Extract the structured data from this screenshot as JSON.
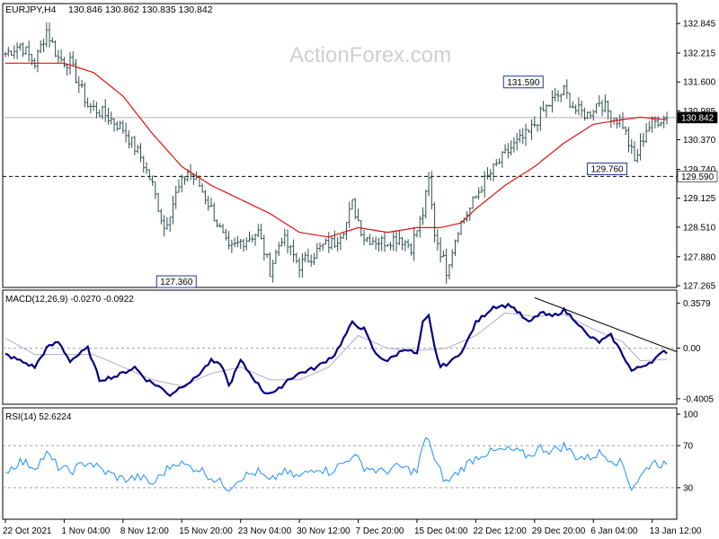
{
  "header": {
    "symbol": "EURJPY,H4",
    "ohlc": "130.846 130.862 130.835 130.842"
  },
  "watermark": "ActionForex.com",
  "chart_data": [
    {
      "type": "line",
      "name": "price",
      "title": "EURJPY,H4  130.846 130.862 130.835 130.842",
      "ylim": [
        127.265,
        133.0
      ],
      "ticks": [
        "132.845",
        "132.215",
        "131.600",
        "130.985",
        "130.370",
        "129.740",
        "129.125",
        "128.510",
        "127.880",
        "127.265"
      ],
      "tick_values": [
        132.845,
        132.215,
        131.6,
        130.985,
        130.37,
        129.74,
        129.125,
        128.51,
        127.88,
        127.265
      ],
      "current_price": {
        "label": "130.842",
        "value": 130.842
      },
      "support_level": {
        "label": "129.590",
        "value": 129.59
      },
      "annotations": [
        {
          "text": "127.360",
          "value": 127.36,
          "index": 60
        },
        {
          "text": "131.590",
          "value": 131.59,
          "index": 178
        },
        {
          "text": "129.760",
          "value": 129.76,
          "index": 212
        }
      ],
      "close_keypoints": [
        [
          0,
          132.2
        ],
        [
          5,
          132.4
        ],
        [
          10,
          132.0
        ],
        [
          14,
          132.7
        ],
        [
          18,
          132.1
        ],
        [
          22,
          132.0
        ],
        [
          28,
          131.1
        ],
        [
          34,
          130.9
        ],
        [
          40,
          130.6
        ],
        [
          46,
          130.0
        ],
        [
          50,
          129.4
        ],
        [
          54,
          128.5
        ],
        [
          58,
          129.2
        ],
        [
          62,
          129.7
        ],
        [
          66,
          129.4
        ],
        [
          70,
          128.9
        ],
        [
          76,
          128.0
        ],
        [
          80,
          128.2
        ],
        [
          86,
          128.4
        ],
        [
          90,
          127.6
        ],
        [
          94,
          128.3
        ],
        [
          100,
          127.7
        ],
        [
          104,
          127.9
        ],
        [
          108,
          128.1
        ],
        [
          112,
          128.2
        ],
        [
          116,
          128.6
        ],
        [
          118,
          129.0
        ],
        [
          122,
          128.3
        ],
        [
          128,
          128.2
        ],
        [
          134,
          128.3
        ],
        [
          138,
          128.1
        ],
        [
          142,
          128.8
        ],
        [
          144,
          129.5
        ],
        [
          146,
          128.4
        ],
        [
          150,
          127.6
        ],
        [
          154,
          128.5
        ],
        [
          158,
          128.9
        ],
        [
          162,
          129.4
        ],
        [
          168,
          129.9
        ],
        [
          172,
          130.2
        ],
        [
          178,
          130.5
        ],
        [
          182,
          130.9
        ],
        [
          186,
          131.2
        ],
        [
          190,
          131.4
        ],
        [
          194,
          131.0
        ],
        [
          198,
          130.9
        ],
        [
          202,
          131.2
        ],
        [
          206,
          130.9
        ],
        [
          210,
          130.7
        ],
        [
          212,
          130.3
        ],
        [
          214,
          129.9
        ],
        [
          218,
          130.6
        ],
        [
          222,
          130.8
        ],
        [
          224,
          130.84
        ]
      ],
      "ma_keypoints": [
        [
          0,
          132.0
        ],
        [
          20,
          132.0
        ],
        [
          30,
          131.8
        ],
        [
          40,
          131.3
        ],
        [
          50,
          130.5
        ],
        [
          60,
          129.8
        ],
        [
          70,
          129.4
        ],
        [
          80,
          129.1
        ],
        [
          90,
          128.8
        ],
        [
          100,
          128.4
        ],
        [
          110,
          128.3
        ],
        [
          120,
          128.5
        ],
        [
          130,
          128.4
        ],
        [
          140,
          128.5
        ],
        [
          148,
          128.5
        ],
        [
          155,
          128.6
        ],
        [
          160,
          128.9
        ],
        [
          170,
          129.4
        ],
        [
          180,
          129.8
        ],
        [
          190,
          130.3
        ],
        [
          200,
          130.7
        ],
        [
          210,
          130.8
        ],
        [
          216,
          130.85
        ],
        [
          224,
          130.8
        ]
      ]
    },
    {
      "type": "line",
      "name": "macd",
      "title": "MACD(12,26,9) -0.0270 -0.0922",
      "ylim": [
        -0.43,
        0.41
      ],
      "ticks": [
        "0.3579",
        "0.00",
        "-0.4005"
      ],
      "tick_values": [
        0.3579,
        0.0,
        -0.4005
      ],
      "trendline": [
        [
          180,
          0.4
        ],
        [
          224,
          0.0
        ]
      ],
      "macd_keypoints": [
        [
          0,
          -0.05
        ],
        [
          5,
          -0.1
        ],
        [
          10,
          -0.15
        ],
        [
          14,
          0.0
        ],
        [
          18,
          0.05
        ],
        [
          22,
          -0.1
        ],
        [
          28,
          0.0
        ],
        [
          32,
          -0.25
        ],
        [
          38,
          -0.22
        ],
        [
          44,
          -0.15
        ],
        [
          48,
          -0.25
        ],
        [
          52,
          -0.3
        ],
        [
          56,
          -0.37
        ],
        [
          60,
          -0.3
        ],
        [
          64,
          -0.25
        ],
        [
          70,
          -0.1
        ],
        [
          74,
          -0.15
        ],
        [
          76,
          -0.3
        ],
        [
          80,
          -0.1
        ],
        [
          88,
          -0.35
        ],
        [
          92,
          -0.35
        ],
        [
          96,
          -0.25
        ],
        [
          100,
          -0.2
        ],
        [
          106,
          -0.15
        ],
        [
          112,
          -0.05
        ],
        [
          118,
          0.2
        ],
        [
          122,
          0.15
        ],
        [
          126,
          -0.05
        ],
        [
          130,
          -0.1
        ],
        [
          136,
          0.0
        ],
        [
          140,
          -0.05
        ],
        [
          142,
          0.2
        ],
        [
          144,
          0.25
        ],
        [
          146,
          0.0
        ],
        [
          148,
          -0.15
        ],
        [
          152,
          -0.1
        ],
        [
          156,
          0.0
        ],
        [
          160,
          0.2
        ],
        [
          166,
          0.33
        ],
        [
          172,
          0.34
        ],
        [
          178,
          0.2
        ],
        [
          182,
          0.28
        ],
        [
          186,
          0.25
        ],
        [
          190,
          0.3
        ],
        [
          194,
          0.22
        ],
        [
          198,
          0.1
        ],
        [
          202,
          0.05
        ],
        [
          206,
          0.1
        ],
        [
          210,
          -0.05
        ],
        [
          213,
          -0.18
        ],
        [
          216,
          -0.15
        ],
        [
          220,
          -0.1
        ],
        [
          224,
          -0.03
        ]
      ],
      "signal_keypoints": [
        [
          0,
          0.08
        ],
        [
          10,
          -0.05
        ],
        [
          20,
          -0.05
        ],
        [
          30,
          -0.05
        ],
        [
          40,
          -0.15
        ],
        [
          50,
          -0.25
        ],
        [
          60,
          -0.3
        ],
        [
          70,
          -0.2
        ],
        [
          80,
          -0.15
        ],
        [
          90,
          -0.25
        ],
        [
          100,
          -0.25
        ],
        [
          110,
          -0.15
        ],
        [
          120,
          0.1
        ],
        [
          130,
          0.0
        ],
        [
          140,
          -0.02
        ],
        [
          150,
          0.0
        ],
        [
          160,
          0.1
        ],
        [
          170,
          0.28
        ],
        [
          180,
          0.25
        ],
        [
          190,
          0.27
        ],
        [
          200,
          0.15
        ],
        [
          210,
          0.05
        ],
        [
          216,
          -0.1
        ],
        [
          224,
          -0.09
        ]
      ]
    },
    {
      "type": "line",
      "name": "rsi",
      "title": "RSI(14) 52.6224",
      "ylim": [
        0,
        100
      ],
      "ticks": [
        "100",
        "70",
        "30",
        "0"
      ],
      "tick_values": [
        100,
        70,
        30,
        0
      ],
      "levels": [
        70,
        30
      ],
      "rsi_keypoints": [
        [
          0,
          45
        ],
        [
          5,
          55
        ],
        [
          10,
          50
        ],
        [
          14,
          62
        ],
        [
          18,
          50
        ],
        [
          22,
          45
        ],
        [
          28,
          55
        ],
        [
          34,
          45
        ],
        [
          40,
          38
        ],
        [
          46,
          40
        ],
        [
          50,
          33
        ],
        [
          54,
          45
        ],
        [
          58,
          55
        ],
        [
          62,
          50
        ],
        [
          66,
          48
        ],
        [
          70,
          40
        ],
        [
          76,
          30
        ],
        [
          80,
          40
        ],
        [
          86,
          45
        ],
        [
          90,
          35
        ],
        [
          94,
          45
        ],
        [
          100,
          40
        ],
        [
          106,
          50
        ],
        [
          110,
          45
        ],
        [
          116,
          55
        ],
        [
          118,
          62
        ],
        [
          122,
          50
        ],
        [
          128,
          45
        ],
        [
          134,
          50
        ],
        [
          140,
          45
        ],
        [
          142,
          70
        ],
        [
          144,
          78
        ],
        [
          146,
          55
        ],
        [
          150,
          35
        ],
        [
          154,
          45
        ],
        [
          158,
          55
        ],
        [
          162,
          62
        ],
        [
          168,
          65
        ],
        [
          172,
          66
        ],
        [
          178,
          60
        ],
        [
          182,
          68
        ],
        [
          186,
          65
        ],
        [
          190,
          70
        ],
        [
          194,
          60
        ],
        [
          198,
          58
        ],
        [
          202,
          63
        ],
        [
          206,
          58
        ],
        [
          210,
          52
        ],
        [
          213,
          30
        ],
        [
          216,
          40
        ],
        [
          220,
          55
        ],
        [
          224,
          52
        ]
      ]
    }
  ],
  "time_axis": {
    "labels": [
      "22 Oct 2021",
      "1 Nov 04:00",
      "8 Nov 12:00",
      "15 Nov 20:00",
      "23 Nov 04:00",
      "30 Nov 12:00",
      "7 Dec 20:00",
      "15 Dec 04:00",
      "22 Dec 12:00",
      "29 Dec 20:00",
      "6 Jan 04:00",
      "13 Jan 12:00"
    ],
    "label_index": [
      0,
      20,
      40,
      60,
      80,
      100,
      120,
      140,
      160,
      180,
      200,
      220
    ]
  },
  "colors": {
    "candle": "#2f4f4f",
    "ma": "#e01010",
    "macd": "#000080",
    "signal": "#b8a8c8",
    "rsi": "#1e8fff",
    "frame": "#000000",
    "grid": "#a0a0a0"
  }
}
